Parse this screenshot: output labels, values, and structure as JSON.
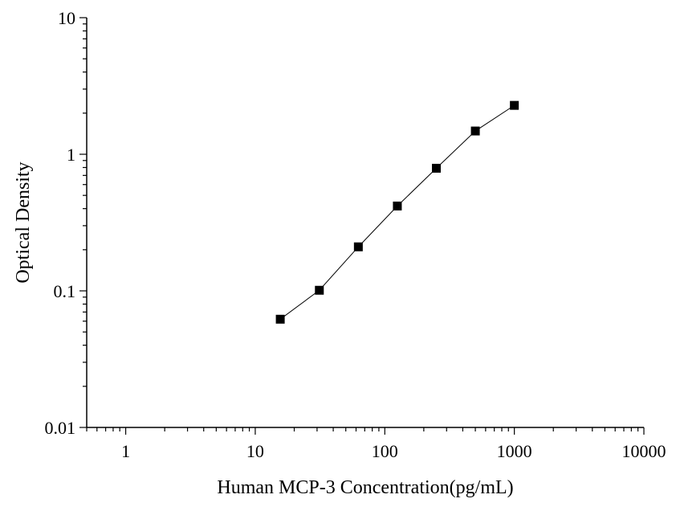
{
  "chart_data": {
    "type": "scatter",
    "title": "",
    "xlabel": "Human MCP-3 Concentration(pg/mL)",
    "ylabel": "Optical Density",
    "x_scale": "log",
    "y_scale": "log",
    "xlim": [
      0.5,
      10000
    ],
    "ylim": [
      0.01,
      10
    ],
    "x_ticks": [
      1,
      10,
      100,
      1000,
      10000
    ],
    "x_tick_labels": [
      "1",
      "10",
      "100",
      "1000",
      "10000"
    ],
    "y_ticks": [
      0.01,
      0.1,
      1,
      10
    ],
    "y_tick_labels": [
      "0.01",
      "0.1",
      "1",
      "10"
    ],
    "grid": false,
    "series": [
      {
        "x": [
          15.6,
          31.25,
          62.5,
          125,
          250,
          500,
          1000
        ],
        "y": [
          0.062,
          0.101,
          0.21,
          0.418,
          0.79,
          1.48,
          2.28
        ]
      }
    ],
    "marker": "square",
    "line_color": "#000000",
    "marker_color": "#000000"
  }
}
